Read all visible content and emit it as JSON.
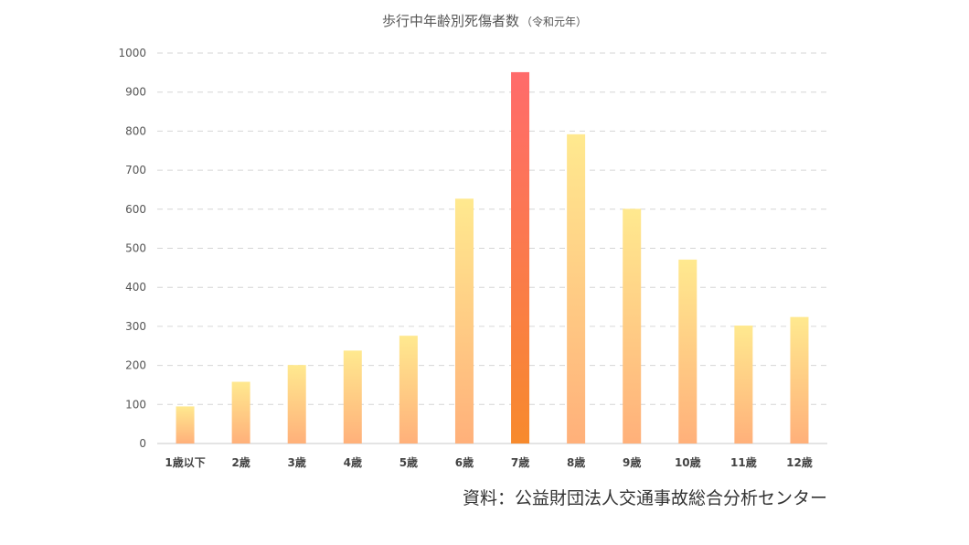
{
  "chart_data": {
    "type": "bar",
    "title": "歩行中年齢別死傷者数",
    "subtitle": "（令和元年）",
    "categories": [
      "1歳以下",
      "2歳",
      "3歳",
      "4歳",
      "5歳",
      "6歳",
      "7歳",
      "8歳",
      "9歳",
      "10歳",
      "11歳",
      "12歳"
    ],
    "values": [
      95,
      158,
      201,
      238,
      276,
      627,
      951,
      792,
      601,
      471,
      302,
      324
    ],
    "highlight_index": 6,
    "ylim": [
      0,
      1000
    ],
    "yticks": [
      "0",
      "100",
      "200",
      "300",
      "400",
      "500",
      "600",
      "700",
      "800",
      "900",
      "1000"
    ],
    "grid": true,
    "source": "資料：公益財団法人交通事故総合分析センター",
    "colors": {
      "bar_top": "#ffe98f",
      "bar_bottom": "#ffb07a",
      "highlight_top": "#ff6b6b",
      "highlight_bottom": "#f78a2d"
    }
  }
}
